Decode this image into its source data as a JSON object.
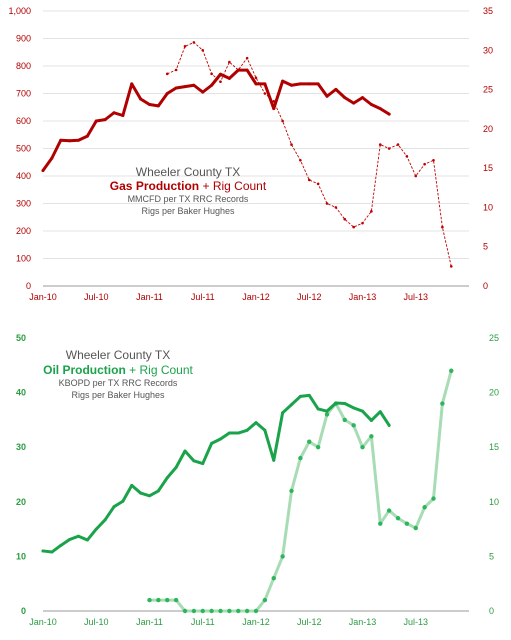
{
  "colors": {
    "gas": "#b00000",
    "gas_rig": "#c00000",
    "oil": "#1aa34a",
    "oil_rig": "#a8dcb5",
    "oil_rig_dot": "#2db55d",
    "oil_axis": "#2c9c42",
    "grey": "#555555"
  },
  "chart_data": [
    {
      "type": "line",
      "title": "Wheeler County TX",
      "subtitle_parts": {
        "main": "Gas Production",
        "plus": " + ",
        "rig": "Rig Count"
      },
      "note1": "MMCFD per TX RRC Records",
      "note2": "Rigs per Baker Hughes",
      "x_ticks": [
        "Jan-10",
        "Jul-10",
        "Jan-11",
        "Jul-11",
        "Jan-12",
        "Jul-12",
        "Jan-13",
        "Jul-13"
      ],
      "ylim": [
        0,
        1000
      ],
      "y_ticks": [
        "0",
        "100",
        "200",
        "300",
        "400",
        "500",
        "600",
        "700",
        "800",
        "900",
        "1,000"
      ],
      "y2lim": [
        0,
        35
      ],
      "y2_ticks": [
        "0",
        "5",
        "10",
        "15",
        "20",
        "25",
        "30",
        "35"
      ],
      "grid": true,
      "series": [
        {
          "name": "Gas Production",
          "axis": "left",
          "start_index": 0,
          "values": [
            420,
            465,
            530,
            528,
            530,
            545,
            600,
            605,
            630,
            620,
            735,
            680,
            660,
            655,
            700,
            720,
            725,
            730,
            705,
            730,
            770,
            755,
            785,
            785,
            735,
            735,
            645,
            745,
            730,
            735,
            735,
            735,
            690,
            715,
            685,
            665,
            685,
            660,
            645,
            625
          ]
        },
        {
          "name": "Rig Count",
          "axis": "right",
          "start_index": 14,
          "values": [
            27,
            27.5,
            30.5,
            31,
            30,
            27,
            26,
            28.5,
            27.5,
            29,
            26.5,
            24.5,
            23.5,
            21,
            18,
            16,
            13.5,
            13,
            10.5,
            10,
            8.5,
            7.5,
            8,
            9.5,
            18,
            17.5,
            18,
            16.5,
            14,
            15.5,
            16,
            7.5,
            2.5
          ]
        }
      ]
    },
    {
      "type": "line",
      "title": "Wheeler County TX",
      "subtitle_parts": {
        "main": "Oil Production",
        "plus": " + ",
        "rig": "Rig Count"
      },
      "note1": "KBOPD per TX RRC Records",
      "note2": "Rigs per Baker Hughes",
      "x_ticks": [
        "Jan-10",
        "Jul-10",
        "Jan-11",
        "Jul-11",
        "Jan-12",
        "Jul-12",
        "Jan-13",
        "Jul-13"
      ],
      "ylim": [
        0,
        50
      ],
      "y_ticks": [
        "0",
        "10",
        "20",
        "30",
        "40",
        "50"
      ],
      "y2lim": [
        0,
        25
      ],
      "y2_ticks": [
        "0",
        "5",
        "10",
        "15",
        "20",
        "25"
      ],
      "grid": false,
      "series": [
        {
          "name": "Oil Production",
          "axis": "left",
          "start_index": 0,
          "values": [
            11,
            10.8,
            12,
            13.1,
            13.7,
            13,
            15,
            16.7,
            19.1,
            20.1,
            23,
            21.6,
            21.1,
            22,
            24.4,
            26.3,
            29.3,
            27.5,
            27,
            30.7,
            31.5,
            32.6,
            32.6,
            33.1,
            34.5,
            33.1,
            27.6,
            36.3,
            37.8,
            39.3,
            39.5,
            37,
            36.6,
            38.1,
            38,
            37.2,
            36.6,
            34.9,
            36.5,
            34
          ]
        },
        {
          "name": "Rig Count",
          "axis": "right",
          "start_index": 12,
          "values": [
            1,
            1,
            1,
            1,
            0,
            0,
            0,
            0,
            0,
            0,
            0,
            0,
            0,
            1,
            3,
            5,
            11,
            14,
            15.5,
            15,
            18,
            19,
            17.5,
            17,
            15,
            16,
            8,
            9.2,
            8.5,
            8,
            7.6,
            9.5,
            10.3,
            19,
            22
          ]
        }
      ]
    }
  ]
}
